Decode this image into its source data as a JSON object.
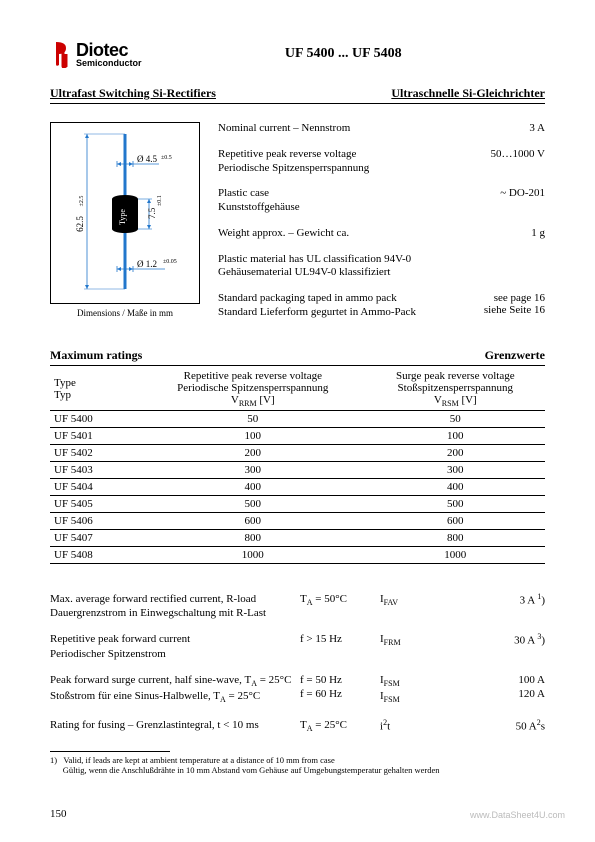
{
  "header": {
    "logo_top": "Diotec",
    "logo_bottom": "Semiconductor",
    "logo_color": "#cc0000",
    "title": "UF 5400 ... UF 5408"
  },
  "subheader": {
    "left": "Ultrafast Switching Si-Rectifiers",
    "right": "Ultraschnelle Si-Gleichrichter"
  },
  "diagram": {
    "caption": "Dimensions / Maße in mm",
    "dim_width": "Ø 4.5",
    "dim_width_sup": "±0.5",
    "dim_height_total": "62.5",
    "dim_height_total_sup": "±2.5",
    "dim_body": "7.5",
    "dim_body_sup": "±0.1",
    "dim_lead": "Ø 1.2",
    "dim_lead_sup": "±0.05",
    "body_label": "Type",
    "colors": {
      "lines": "#2277cc",
      "body_fill": "#000000"
    }
  },
  "specs": [
    {
      "left": [
        "Nominal current – Nennstrom"
      ],
      "right": "3 A"
    },
    {
      "left": [
        "Repetitive peak reverse voltage",
        "Periodische Spitzensperrspannung"
      ],
      "right": "50…1000 V"
    },
    {
      "left": [
        "Plastic case",
        "Kunststoffgehäuse"
      ],
      "right": "~ DO-201"
    },
    {
      "left": [
        "Weight approx. – Gewicht ca."
      ],
      "right": "1 g"
    },
    {
      "left": [
        "Plastic material has UL classification 94V-0",
        "Gehäusematerial UL94V-0 klassifiziert"
      ],
      "right": ""
    },
    {
      "left": [
        "Standard packaging taped in ammo pack",
        "Standard Lieferform gegurtet in Ammo-Pack"
      ],
      "right": "see page 16\nsiehe Seite 16"
    }
  ],
  "ratings": {
    "header_left": "Maximum ratings",
    "header_right": "Grenzwerte",
    "col_headers": {
      "c1a": "Type",
      "c1b": "Typ",
      "c2a": "Repetitive peak reverse voltage",
      "c2b": "Periodische Spitzensperrspannung",
      "c2c": "V",
      "c2c_sub": "RRM",
      "c2c_unit": " [V]",
      "c3a": "Surge peak reverse voltage",
      "c3b": "Stoßspitzensperrspannung",
      "c3c": "V",
      "c3c_sub": "RSM",
      "c3c_unit": " [V]"
    },
    "rows": [
      {
        "type": "UF 5400",
        "vrrm": "50",
        "vrsm": "50"
      },
      {
        "type": "UF 5401",
        "vrrm": "100",
        "vrsm": "100"
      },
      {
        "type": "UF 5402",
        "vrrm": "200",
        "vrsm": "200"
      },
      {
        "type": "UF 5403",
        "vrrm": "300",
        "vrsm": "300"
      },
      {
        "type": "UF 5404",
        "vrrm": "400",
        "vrsm": "400"
      },
      {
        "type": "UF 5405",
        "vrrm": "500",
        "vrsm": "500"
      },
      {
        "type": "UF 5406",
        "vrrm": "600",
        "vrsm": "600"
      },
      {
        "type": "UF 5407",
        "vrrm": "800",
        "vrsm": "800"
      },
      {
        "type": "UF 5408",
        "vrrm": "1000",
        "vrsm": "1000"
      }
    ]
  },
  "specs2": [
    {
      "c1": [
        "Max. average forward rectified current, R-load",
        "Dauergrenzstrom in Einwegschaltung mit R-Last"
      ],
      "c2": [
        "T<sub>A</sub> = 50°C"
      ],
      "c3": [
        "I<sub>FAV</sub>"
      ],
      "c4": [
        "3 A <sup>1</sup>)"
      ]
    },
    {
      "c1": [
        "Repetitive peak forward current",
        "Periodischer Spitzenstrom"
      ],
      "c2": [
        "f > 15 Hz"
      ],
      "c3": [
        "I<sub>FRM</sub>"
      ],
      "c4": [
        "30 A <sup>3</sup>)"
      ]
    },
    {
      "c1": [
        "Peak forward surge current, half sine-wave, T<sub>A</sub> = 25°C",
        "Stoßstrom für eine Sinus-Halbwelle, T<sub>A</sub> = 25°C"
      ],
      "c2": [
        "f = 50 Hz",
        "f = 60 Hz"
      ],
      "c3": [
        "I<sub>FSM</sub>",
        "I<sub>FSM</sub>"
      ],
      "c4": [
        "100 A",
        "120 A"
      ]
    },
    {
      "c1": [
        "Rating for fusing – Grenzlastintegral, t < 10 ms"
      ],
      "c2": [
        "T<sub>A</sub> = 25°C"
      ],
      "c3": [
        "i<sup>2</sup>t"
      ],
      "c4": [
        "50 A<sup>2</sup>s"
      ]
    }
  ],
  "footnote": {
    "marker": "1)",
    "en": "Valid, if leads are kept at ambient temperature at a distance of 10 mm from case",
    "de": "Gültig, wenn die Anschlußdrähte in 10 mm Abstand vom Gehäuse auf Umgebungstemperatur gehalten werden"
  },
  "page_number": "150",
  "watermark": "www.DataSheet4U.com"
}
